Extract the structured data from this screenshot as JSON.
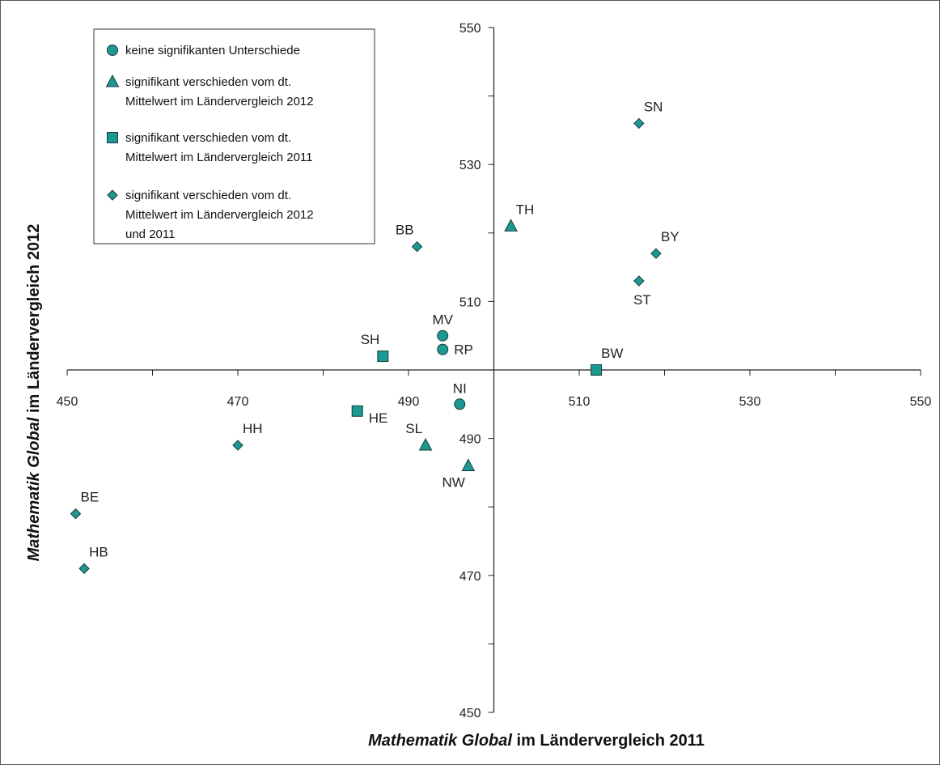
{
  "chart_data": {
    "type": "scatter",
    "xlabel": {
      "italic": "Mathematik Global",
      "rest": " im Ländervergleich 2011"
    },
    "ylabel": {
      "italic": "Mathematik Global",
      "rest": " im Ländervergleich 2012"
    },
    "xlim": [
      450,
      550
    ],
    "ylim": [
      450,
      550
    ],
    "x_ticks": [
      450,
      470,
      490,
      510,
      530,
      550
    ],
    "y_ticks": [
      450,
      470,
      490,
      510,
      530,
      550
    ],
    "axes_cross_at": {
      "x": 500,
      "y": 500
    },
    "legend": {
      "placement": "top-left",
      "entries": [
        {
          "marker": "circle",
          "lines": [
            "keine signifikanten Unterschiede"
          ]
        },
        {
          "marker": "triangle",
          "lines": [
            "signifikant verschieden vom dt.",
            "Mittelwert im Ländervergleich 2012"
          ]
        },
        {
          "marker": "square",
          "lines": [
            "signifikant verschieden vom dt.",
            "Mittelwert im Ländervergleich 2011"
          ]
        },
        {
          "marker": "diamond",
          "lines": [
            "signifikant verschieden vom dt.",
            "Mittelwert im Ländervergleich 2012",
            "und 2011"
          ]
        }
      ]
    },
    "marker_color": "#1a9a93",
    "points": [
      {
        "label": "SN",
        "x": 517,
        "y": 536,
        "marker": "diamond",
        "lpos": "ne"
      },
      {
        "label": "TH",
        "x": 502,
        "y": 521,
        "marker": "triangle",
        "lpos": "ne"
      },
      {
        "label": "BB",
        "x": 491,
        "y": 518,
        "marker": "diamond",
        "lpos": "nw"
      },
      {
        "label": "BY",
        "x": 519,
        "y": 517,
        "marker": "diamond",
        "lpos": "ne"
      },
      {
        "label": "ST",
        "x": 517,
        "y": 513,
        "marker": "diamond",
        "lpos": "s"
      },
      {
        "label": "MV",
        "x": 494,
        "y": 505,
        "marker": "circle",
        "lpos": "n"
      },
      {
        "label": "RP",
        "x": 494,
        "y": 503,
        "marker": "circle",
        "lpos": "e"
      },
      {
        "label": "SH",
        "x": 487,
        "y": 502,
        "marker": "square",
        "lpos": "nw"
      },
      {
        "label": "BW",
        "x": 512,
        "y": 500,
        "marker": "square",
        "lpos": "ne"
      },
      {
        "label": "NI",
        "x": 496,
        "y": 495,
        "marker": "circle",
        "lpos": "n"
      },
      {
        "label": "HE",
        "x": 484,
        "y": 494,
        "marker": "square",
        "lpos": "se"
      },
      {
        "label": "SL",
        "x": 492,
        "y": 489,
        "marker": "triangle",
        "lpos": "nw"
      },
      {
        "label": "HH",
        "x": 470,
        "y": 489,
        "marker": "diamond",
        "lpos": "ne"
      },
      {
        "label": "NW",
        "x": 497,
        "y": 486,
        "marker": "triangle",
        "lpos": "sw"
      },
      {
        "label": "BE",
        "x": 451,
        "y": 479,
        "marker": "diamond",
        "lpos": "ne"
      },
      {
        "label": "HB",
        "x": 452,
        "y": 471,
        "marker": "diamond",
        "lpos": "ne"
      }
    ]
  }
}
